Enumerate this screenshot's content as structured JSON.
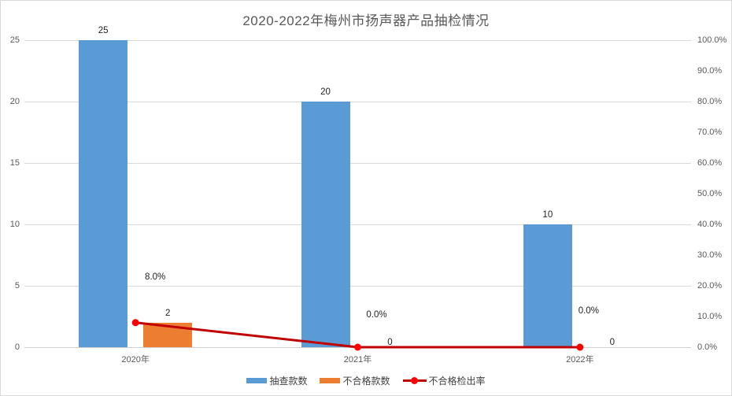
{
  "chart_data": {
    "type": "combo-bar-line",
    "title": "2020-2022年梅州市扬声器产品抽检情况",
    "categories": [
      "2020年",
      "2021年",
      "2022年"
    ],
    "series": [
      {
        "name": "抽查款数",
        "type": "bar",
        "axis": "left",
        "color": "#5B9BD5",
        "values": [
          25,
          20,
          10
        ],
        "data_labels": [
          "25",
          "20",
          "10"
        ]
      },
      {
        "name": "不合格款数",
        "type": "bar",
        "axis": "left",
        "color": "#ED7D31",
        "values": [
          2,
          0,
          0
        ],
        "data_labels": [
          "2",
          "0",
          "0"
        ]
      },
      {
        "name": "不合格检出率",
        "type": "line",
        "axis": "right",
        "color": "#C00000",
        "marker_color": "#FF0000",
        "values": [
          8.0,
          0.0,
          0.0
        ],
        "data_labels": [
          "8.0%",
          "0.0%",
          "0.0%"
        ]
      }
    ],
    "left_axis": {
      "min": 0,
      "max": 25,
      "step": 5,
      "tick_labels": [
        "0",
        "5",
        "10",
        "15",
        "20",
        "25"
      ]
    },
    "right_axis": {
      "min": 0,
      "max": 100,
      "step": 10,
      "tick_labels": [
        "0.0%",
        "10.0%",
        "20.0%",
        "30.0%",
        "40.0%",
        "50.0%",
        "60.0%",
        "70.0%",
        "80.0%",
        "90.0%",
        "100.0%"
      ]
    },
    "grid": true,
    "legend_position": "bottom",
    "styles": {
      "background": "#FFFFFF",
      "border_color": "#D9D9D9",
      "grid_color": "#D9D9D9",
      "axis_text_color": "#595959",
      "data_label_color": "#1F1F1F",
      "title_color": "#595959"
    }
  }
}
